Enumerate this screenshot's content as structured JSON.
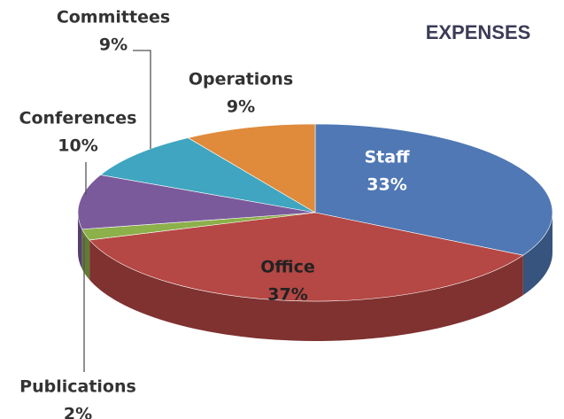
{
  "chart_data": {
    "type": "pie3d",
    "title": "EXPENSES",
    "categories": [
      "Staff",
      "Office",
      "Publications",
      "Conferences",
      "Committees",
      "Operations"
    ],
    "values": [
      33,
      37,
      2,
      10,
      9,
      9
    ],
    "value_labels": [
      "33%",
      "37%",
      "2%",
      "10%",
      "9%",
      "9%"
    ],
    "colors": [
      "#4f78b4",
      "#b54744",
      "#8cb04a",
      "#7b5a9c",
      "#3fa5c0",
      "#e08a3c"
    ]
  }
}
